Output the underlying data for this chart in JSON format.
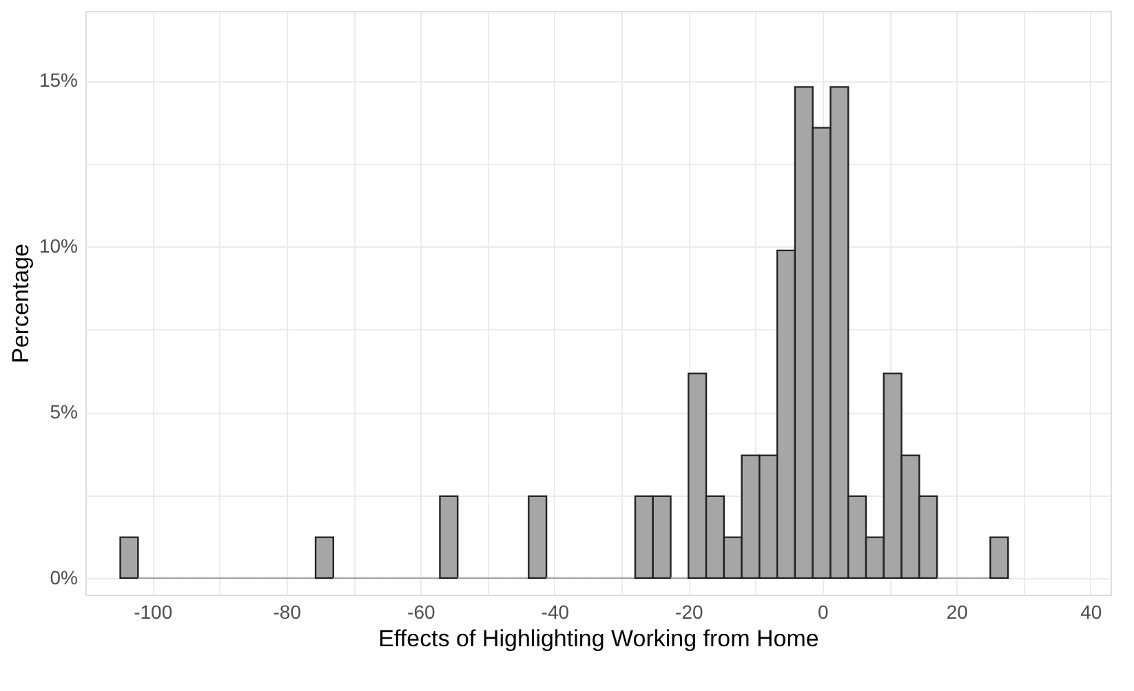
{
  "chart_data": {
    "type": "histogram",
    "xlabel": "Effects of Highlighting Working from Home",
    "ylabel": "Percentage",
    "bins": [
      -104.8,
      -102.15,
      -99.5,
      -96.85,
      -94.2,
      -91.55,
      -88.9,
      -86.25,
      -83.6,
      -80.95,
      -78.3,
      -75.65,
      -73.0,
      -70.35,
      -67.7,
      -65.05,
      -62.4,
      -59.75,
      -57.1,
      -54.45,
      -51.8,
      -49.15,
      -46.5,
      -43.85,
      -41.2,
      -38.55,
      -35.9,
      -33.25,
      -30.6,
      -27.95,
      -25.3,
      -22.65,
      -20.0,
      -17.35,
      -14.7,
      -12.05,
      -9.4,
      -6.75,
      -4.1,
      -1.45,
      1.2,
      3.85,
      6.5,
      9.15,
      11.8,
      14.45,
      17.1,
      19.75,
      22.4,
      25.05,
      27.7
    ],
    "values": [
      1.23,
      0,
      0,
      0,
      0,
      0,
      0,
      0,
      0,
      0,
      0,
      1.23,
      0,
      0,
      0,
      0,
      0,
      0,
      2.47,
      0,
      0,
      0,
      0,
      2.47,
      0,
      0,
      0,
      0,
      0,
      2.47,
      2.47,
      0,
      6.17,
      2.47,
      1.23,
      3.7,
      3.7,
      9.88,
      14.81,
      13.58,
      14.81,
      2.47,
      1.23,
      6.17,
      3.7,
      2.47,
      0,
      0,
      0,
      1.23
    ],
    "color": "#a6a6a6",
    "xlim": [
      -110,
      43
    ],
    "xticks": [
      -100,
      {
        "value": -90,
        "label": null
      },
      -80,
      {
        "value": -70,
        "label": null
      },
      -60,
      {
        "value": -50,
        "label": null
      },
      -40,
      {
        "value": -30,
        "label": null
      },
      -20,
      {
        "value": -10,
        "label": null
      },
      0,
      {
        "value": 10,
        "label": null
      },
      20,
      {
        "value": 30,
        "label": null
      },
      40
    ],
    "ylim": [
      -0.5,
      17.1
    ],
    "yticks": [
      {
        "value": 0,
        "label": "0%"
      },
      {
        "value": 2.5,
        "label": null
      },
      {
        "value": 5,
        "label": "5%"
      },
      {
        "value": 7.5,
        "label": null
      },
      {
        "value": 10,
        "label": "10%"
      },
      {
        "value": 12.5,
        "label": null
      },
      {
        "value": 15,
        "label": "15%"
      }
    ],
    "grid": true
  }
}
